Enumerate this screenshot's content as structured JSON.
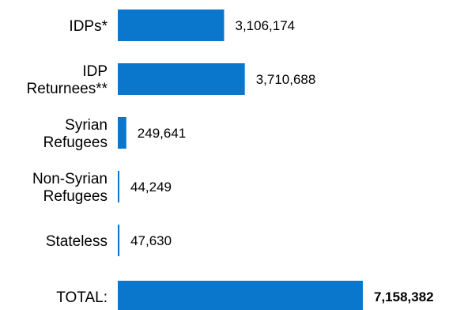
{
  "chart_data": {
    "type": "bar",
    "orientation": "horizontal",
    "title": "",
    "xlabel": "",
    "ylabel": "",
    "grid": false,
    "bar_color": "#0a77cc",
    "categories": [
      [
        "IDPs*"
      ],
      [
        "IDP",
        "Returnees**"
      ],
      [
        "Syrian",
        "Refugees"
      ],
      [
        "Non-Syrian",
        "Refugees"
      ],
      [
        "Stateless"
      ],
      [
        "TOTAL:"
      ]
    ],
    "values": [
      3106174,
      3710688,
      249641,
      44249,
      47630,
      7158382
    ],
    "value_labels": [
      "3,106,174",
      "3,710,688",
      "249,641",
      "44,249",
      "47,630",
      "7,158,382"
    ],
    "bold_value_labels": [
      false,
      false,
      false,
      false,
      false,
      true
    ],
    "xlim": [
      0,
      7158382
    ]
  }
}
